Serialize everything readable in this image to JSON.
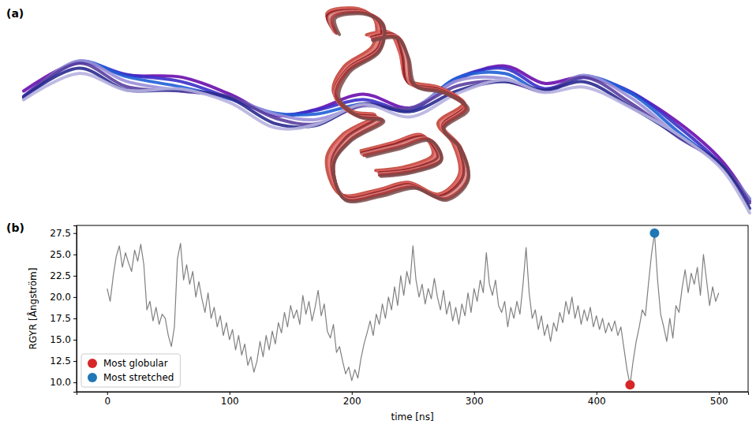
{
  "panel_labels": [
    "(a)",
    "(b)"
  ],
  "chart_data": {
    "type": "line",
    "xlabel": "time [ns]",
    "ylabel": "RGYR [Ångström]",
    "xlim": [
      -25,
      524
    ],
    "xticks": [
      0,
      100,
      200,
      300,
      400,
      500
    ],
    "ylim": [
      8.9,
      28.4
    ],
    "yticks": [
      {
        "value": 10,
        "label": "10.0"
      },
      {
        "value": 12.5,
        "label": "12.5"
      },
      {
        "value": 15,
        "label": "15.0"
      },
      {
        "value": 17.5,
        "label": "17.5"
      },
      {
        "value": 20,
        "label": "20.0"
      },
      {
        "value": 22.5,
        "label": "22.5"
      },
      {
        "value": 25,
        "label": "25.0"
      },
      {
        "value": 27.5,
        "label": "27.5"
      }
    ],
    "grid": false,
    "legend": "lower left",
    "x": [
      0,
      2.5,
      5,
      7.5,
      10,
      12.5,
      15,
      17.5,
      20,
      22.5,
      25,
      27.5,
      30,
      32.5,
      35,
      37.5,
      40,
      42.5,
      45,
      47.5,
      50,
      52.5,
      55,
      57.5,
      60,
      62.5,
      65,
      67.5,
      70,
      72.5,
      75,
      77.5,
      80,
      82.5,
      85,
      87.5,
      90,
      92.5,
      95,
      97.5,
      100,
      102.5,
      105,
      107.5,
      110,
      112.5,
      115,
      117.5,
      120,
      122.5,
      125,
      127.5,
      130,
      132.5,
      135,
      137.5,
      140,
      142.5,
      145,
      147.5,
      150,
      152.5,
      155,
      157.5,
      160,
      162.5,
      165,
      167.5,
      170,
      172.5,
      175,
      177.5,
      180,
      182.5,
      185,
      187.5,
      190,
      192.5,
      195,
      197.5,
      200,
      202.5,
      205,
      207.5,
      210,
      212.5,
      215,
      217.5,
      220,
      222.5,
      225,
      227.5,
      230,
      232.5,
      235,
      237.5,
      240,
      242.5,
      245,
      247.5,
      250,
      252.5,
      255,
      257.5,
      260,
      262.5,
      265,
      267.5,
      270,
      272.5,
      275,
      277.5,
      280,
      282.5,
      285,
      287.5,
      290,
      292.5,
      295,
      297.5,
      300,
      302.5,
      305,
      307.5,
      310,
      312.5,
      315,
      317.5,
      320,
      322.5,
      325,
      327.5,
      330,
      332.5,
      335,
      337.5,
      340,
      342.5,
      345,
      347.5,
      350,
      352.5,
      355,
      357.5,
      360,
      362.5,
      365,
      367.5,
      370,
      372.5,
      375,
      377.5,
      380,
      382.5,
      385,
      387.5,
      390,
      392.5,
      395,
      397.5,
      400,
      402.5,
      405,
      407.5,
      410,
      412.5,
      415,
      417.5,
      420,
      422.5,
      425,
      427.5,
      430,
      432.5,
      435,
      437.5,
      440,
      442.5,
      445,
      447.5,
      450,
      452.5,
      455,
      457.5,
      460,
      462.5,
      465,
      467.5,
      470,
      472.5,
      475,
      477.5,
      480,
      482.5,
      485,
      487.5,
      490,
      492.5,
      495,
      497.5,
      500
    ],
    "series": [
      {
        "type": "line",
        "color": "#808080",
        "line_style": "solid",
        "values": [
          21.0,
          19.5,
          22.5,
          24.8,
          26.0,
          23.5,
          25.2,
          24.0,
          23.0,
          25.5,
          24.2,
          26.2,
          23.8,
          18.5,
          19.5,
          17.2,
          18.8,
          16.8,
          18.0,
          17.5,
          15.5,
          14.2,
          16.5,
          24.5,
          26.3,
          22.0,
          23.8,
          21.5,
          23.0,
          20.0,
          21.8,
          19.8,
          18.2,
          20.5,
          17.5,
          18.8,
          16.5,
          17.8,
          15.5,
          17.0,
          15.0,
          16.2,
          13.8,
          15.5,
          13.2,
          14.5,
          12.0,
          13.0,
          11.2,
          12.5,
          14.8,
          13.0,
          15.5,
          13.8,
          16.0,
          14.5,
          17.0,
          15.8,
          18.2,
          16.5,
          19.0,
          17.5,
          18.5,
          16.8,
          20.2,
          18.0,
          19.5,
          17.2,
          18.8,
          20.8,
          17.8,
          19.2,
          16.0,
          15.2,
          16.8,
          13.5,
          14.2,
          12.5,
          11.0,
          11.8,
          10.2,
          11.5,
          10.5,
          12.8,
          14.5,
          15.8,
          17.2,
          15.5,
          18.0,
          16.8,
          19.2,
          17.5,
          20.0,
          18.5,
          21.2,
          19.0,
          22.5,
          20.2,
          23.0,
          21.5,
          26.0,
          22.0,
          20.0,
          21.5,
          19.2,
          21.0,
          19.8,
          22.2,
          20.0,
          18.5,
          20.8,
          18.0,
          19.5,
          17.2,
          18.8,
          16.8,
          19.2,
          17.8,
          20.5,
          18.2,
          21.0,
          19.5,
          22.0,
          20.5,
          25.2,
          21.5,
          20.2,
          22.0,
          19.0,
          18.2,
          19.5,
          16.5,
          18.8,
          17.5,
          19.5,
          18.0,
          21.5,
          25.8,
          20.5,
          17.5,
          18.5,
          16.2,
          17.8,
          15.5,
          16.8,
          14.8,
          17.0,
          16.0,
          18.2,
          17.0,
          19.5,
          18.0,
          20.0,
          17.5,
          19.0,
          16.8,
          18.5,
          17.2,
          18.8,
          16.5,
          17.8,
          16.2,
          17.5,
          15.8,
          17.0,
          16.0,
          17.2,
          15.5,
          16.5,
          14.0,
          11.5,
          9.7,
          12.5,
          14.8,
          16.5,
          18.5,
          17.8,
          21.5,
          25.0,
          27.5,
          22.0,
          18.0,
          16.5,
          14.8,
          17.5,
          15.2,
          19.0,
          18.2,
          21.0,
          23.2,
          20.5,
          22.8,
          21.5,
          23.5,
          20.2,
          25.0,
          22.0,
          19.0,
          21.2,
          19.5,
          20.5
        ]
      },
      {
        "type": "scatter",
        "name": "Most globular",
        "color": "#d62728",
        "marker": "circle",
        "x": [
          427.5
        ],
        "values": [
          9.7
        ]
      },
      {
        "type": "scatter",
        "name": "Most stretched",
        "color": "#1f77b4",
        "marker": "circle",
        "x": [
          447.5
        ],
        "values": [
          27.5
        ]
      }
    ]
  }
}
